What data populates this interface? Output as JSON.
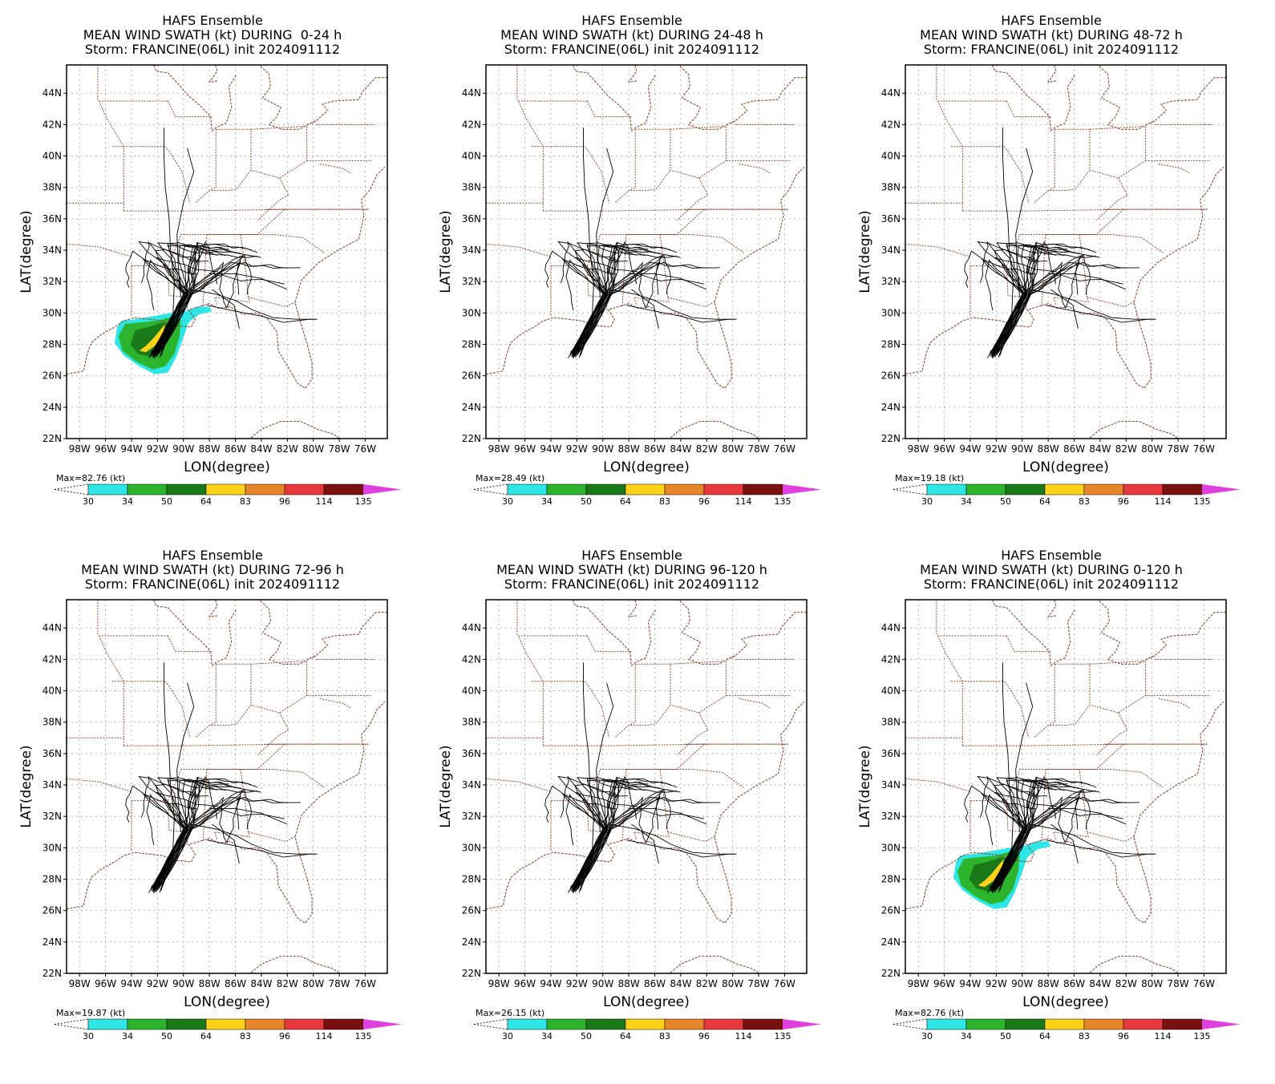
{
  "panels": [
    {
      "title": [
        "HAFS Ensemble",
        "MEAN WIND SWATH (kt) DURING  0-24 h",
        "Storm: FRANCINE(06L) init 2024091112"
      ],
      "max_label": "Max=82.76 (kt)",
      "swath": "full"
    },
    {
      "title": [
        "HAFS Ensemble",
        "MEAN WIND SWATH (kt) DURING 24-48 h",
        "Storm: FRANCINE(06L) init 2024091112"
      ],
      "max_label": "Max=28.49 (kt)",
      "swath": "none"
    },
    {
      "title": [
        "HAFS Ensemble",
        "MEAN WIND SWATH (kt) DURING 48-72 h",
        "Storm: FRANCINE(06L) init 2024091112"
      ],
      "max_label": "Max=19.18 (kt)",
      "swath": "none"
    },
    {
      "title": [
        "HAFS Ensemble",
        "MEAN WIND SWATH (kt) DURING 72-96 h",
        "Storm: FRANCINE(06L) init 2024091112"
      ],
      "max_label": "Max=19.87 (kt)",
      "swath": "none"
    },
    {
      "title": [
        "HAFS Ensemble",
        "MEAN WIND SWATH (kt) DURING 96-120 h",
        "Storm: FRANCINE(06L) init 2024091112"
      ],
      "max_label": "Max=26.15 (kt)",
      "swath": "none"
    },
    {
      "title": [
        "HAFS Ensemble",
        "MEAN WIND SWATH (kt) DURING 0-120 h",
        "Storm: FRANCINE(06L) init 2024091112"
      ],
      "max_label": "Max=82.76 (kt)",
      "swath": "full"
    }
  ],
  "axes": {
    "xlabel": "LON(degree)",
    "ylabel": "LAT(degree)",
    "lon_ticks": [
      "98W",
      "96W",
      "94W",
      "92W",
      "90W",
      "88W",
      "86W",
      "84W",
      "82W",
      "80W",
      "78W",
      "76W"
    ],
    "lat_ticks": [
      "22N",
      "24N",
      "26N",
      "28N",
      "30N",
      "32N",
      "34N",
      "36N",
      "38N",
      "40N",
      "42N",
      "44N"
    ]
  },
  "colorbar": {
    "levels": [
      "30",
      "34",
      "50",
      "64",
      "83",
      "96",
      "114",
      "135"
    ],
    "colors": [
      "#2ee6e6",
      "#2cb42c",
      "#1a7a1a",
      "#ffd21a",
      "#e8872a",
      "#e8383c",
      "#7a1010",
      "#e040e0"
    ]
  },
  "colors": {
    "border": "#8b4a3a",
    "track": "#000000",
    "grid": "#a0a0a0"
  }
}
